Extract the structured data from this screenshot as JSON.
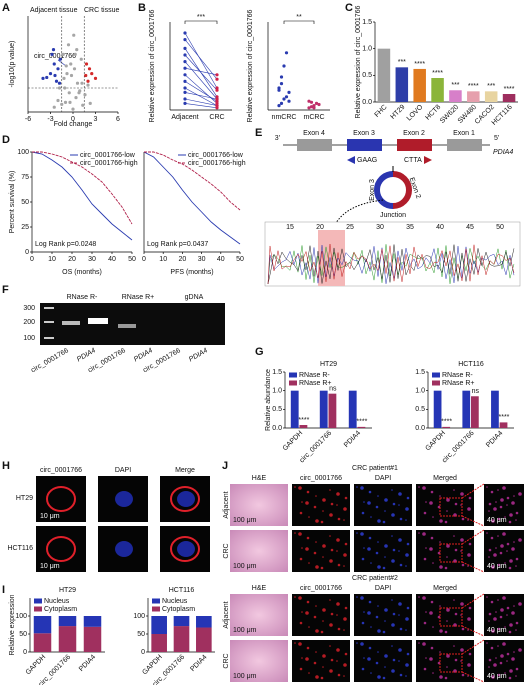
{
  "chart_data": [
    {
      "type": "scatter",
      "x_label": "Fold change",
      "y_label": "-log10(p value)",
      "annotations": [
        "Adjacent tissue",
        "CRC tissue",
        "circ_0001766"
      ],
      "xlim": [
        -6,
        6
      ],
      "ylim": [
        0,
        10
      ],
      "xticks": [
        -6,
        -3,
        0,
        3,
        6
      ],
      "vlines": [
        -1.5,
        1.5
      ],
      "hlines": [
        2.5
      ],
      "series": [
        {
          "color": "#a6a6a6",
          "x": [
            -2.5,
            -2,
            -1.8,
            -1.5,
            -1.2,
            -1,
            -0.8,
            -0.5,
            -0.3,
            0,
            0.2,
            0.4,
            0.6,
            0.9,
            1.1,
            1.3,
            1.6,
            2,
            2.3,
            -1.3,
            -0.9,
            -0.6,
            -0.2,
            0.1,
            0.5,
            0.8,
            1.2,
            -0.4,
            0.3,
            -1.1
          ],
          "values": [
            0.5,
            1.2,
            2.5,
            0.8,
            3.5,
            1,
            4,
            2,
            5,
            0.3,
            4.5,
            1.5,
            3,
            2.2,
            5.5,
            0.7,
            1.8,
            2.8,
            0.9,
            6,
            4.8,
            7,
            3.8,
            8,
            6.5,
            2,
            3,
            1,
            6,
            2.5
          ]
        },
        {
          "color": "#2a3bb0",
          "x": [
            -3,
            -2.5,
            -2.2,
            -3.5,
            -2.8,
            -2,
            -1.8,
            -4,
            -2.4,
            -1.7,
            -2.6
          ],
          "values": [
            4,
            5,
            3.2,
            3.6,
            6,
            4.5,
            3,
            3.5,
            3.8,
            5.5,
            6.5
          ]
        },
        {
          "color": "#d42a2a",
          "x": [
            2,
            2.5,
            1.8,
            3,
            2.2,
            1.7
          ],
          "values": [
            3.2,
            4,
            5,
            3.5,
            4.5,
            3.8
          ]
        }
      ]
    },
    {
      "type": "paired",
      "categories": [
        "Adjacent",
        "CRC"
      ],
      "y_label": "Relative expression of circ_0001766",
      "significance": "***",
      "colors": [
        "#2a3bb0",
        "#d0204a"
      ],
      "ylim": [
        0,
        4
      ],
      "pairs": [
        [
          3.5,
          1.0
        ],
        [
          3.2,
          1.4
        ],
        [
          2.8,
          0.6
        ],
        [
          2.5,
          0.9
        ],
        [
          2.2,
          0.5
        ],
        [
          1.9,
          1.6
        ],
        [
          1.6,
          0.3
        ],
        [
          1.3,
          0.4
        ],
        [
          1.0,
          0.2
        ],
        [
          0.8,
          0.5
        ],
        [
          0.5,
          0.2
        ],
        [
          0.3,
          0.1
        ]
      ]
    },
    {
      "type": "strip",
      "categories": [
        "nmCRC",
        "mCRC"
      ],
      "y_label": "Relative expression of circ_0001766",
      "significance": "**",
      "colors": [
        "#2a3bb0",
        "#c0306a"
      ],
      "ylim": [
        0,
        4
      ],
      "groups": [
        [
          0.2,
          0.3,
          0.5,
          0.6,
          0.8,
          1.0,
          1.5,
          2.0,
          2.6,
          0.4,
          0.9,
          1.2
        ],
        [
          0.1,
          0.15,
          0.2,
          0.3,
          0.25,
          0.4,
          0.35,
          0.1
        ]
      ]
    },
    {
      "type": "bar",
      "categories": [
        "FHC",
        "HT29",
        "LOVO",
        "HCT8",
        "SW620",
        "SW480",
        "CACO2",
        "HCT116"
      ],
      "values": [
        1.0,
        0.65,
        0.62,
        0.45,
        0.22,
        0.2,
        0.2,
        0.15
      ],
      "colors": [
        "#a0a0a0",
        "#2e3ea8",
        "#e07a1f",
        "#8bb53a",
        "#d77fc9",
        "#e6a0ad",
        "#e8d4a0",
        "#9e2e5e"
      ],
      "significance": [
        null,
        "***",
        "****",
        "****",
        "***",
        "****",
        "***",
        "****"
      ],
      "y_label": "Relative expression of circ_0001766",
      "ylim": [
        0,
        1.5
      ],
      "yticks": [
        {
          "value": 0,
          "label": "0.0"
        },
        {
          "value": 0.5,
          "label": "0.5"
        },
        {
          "value": 1,
          "label": "1.0"
        },
        {
          "value": 1.5,
          "label": "1.5"
        }
      ]
    },
    {
      "type": "line",
      "x": [
        0,
        5,
        10,
        15,
        20,
        25,
        30,
        35,
        40,
        45,
        50
      ],
      "xlim": [
        0,
        50
      ],
      "xticks": [
        0,
        10,
        20,
        30,
        40,
        50
      ],
      "ylim": [
        0,
        100
      ],
      "yticks": [
        0,
        25,
        50,
        75,
        100
      ],
      "y_label": "Percent survival (%)",
      "x_label": "OS (months)",
      "annotation": "Log Rank p=0.0248",
      "legend": "upper right",
      "series": [
        {
          "name": "circ_0001766-low",
          "color": "#2a3bb0",
          "values": [
            100,
            98,
            92,
            85,
            75,
            62,
            48,
            38,
            28,
            20,
            12
          ]
        },
        {
          "name": "circ_0001766-high",
          "color": "#b0204a",
          "values": [
            100,
            100,
            98,
            95,
            90,
            85,
            78,
            70,
            58,
            45,
            28
          ]
        }
      ]
    },
    {
      "type": "line",
      "x": [
        0,
        5,
        10,
        15,
        20,
        25,
        30,
        35,
        40,
        45,
        50
      ],
      "xlim": [
        0,
        50
      ],
      "xticks": [
        0,
        10,
        20,
        30,
        40,
        50
      ],
      "ylim": [
        0,
        100
      ],
      "x_label": "PFS (months)",
      "annotation": "Log Rank p=0.0437",
      "legend": "upper right",
      "series": [
        {
          "name": "circ_0001766-low",
          "color": "#2a3bb0",
          "values": [
            100,
            95,
            85,
            75,
            62,
            50,
            40,
            30,
            22,
            15,
            8
          ]
        },
        {
          "name": "circ_0001766-high",
          "color": "#b0204a",
          "values": [
            100,
            100,
            97,
            92,
            88,
            82,
            75,
            68,
            60,
            50,
            42
          ]
        }
      ]
    },
    {
      "type": "grouped_bar",
      "title": "HT29",
      "categories": [
        "GAPDH",
        "circ_0001766",
        "PDIA4"
      ],
      "series": [
        {
          "name": "RNase R-",
          "color": "#2535b5",
          "values": [
            1,
            1,
            1
          ]
        },
        {
          "name": "RNase R+",
          "color": "#a0305f",
          "values": [
            0.08,
            0.92,
            0.03
          ]
        }
      ],
      "significance": [
        "****",
        "ns",
        "****"
      ],
      "y_label": "Relative abundance",
      "ylim": [
        0,
        1.5
      ],
      "legend": "upper left",
      "yticks": [
        {
          "value": 0,
          "label": "0.0"
        },
        {
          "value": 0.5,
          "label": "0.5"
        },
        {
          "value": 1,
          "label": "1.0"
        },
        {
          "value": 1.5,
          "label": "1.5"
        }
      ]
    },
    {
      "type": "grouped_bar",
      "title": "HCT116",
      "categories": [
        "GAPDH",
        "circ_0001766",
        "PDIA4"
      ],
      "series": [
        {
          "name": "RNase R-",
          "color": "#2535b5",
          "values": [
            1,
            1,
            1
          ]
        },
        {
          "name": "RNase R+",
          "color": "#a0305f",
          "values": [
            0.03,
            0.85,
            0.15
          ]
        }
      ],
      "significance": [
        "****",
        "ns",
        "****"
      ],
      "y_label": "Relative abundance",
      "ylim": [
        0,
        1.5
      ],
      "legend": "upper left",
      "yticks": [
        {
          "value": 0,
          "label": "0.0"
        },
        {
          "value": 0.5,
          "label": "0.5"
        },
        {
          "value": 1,
          "label": "1.0"
        },
        {
          "value": 1.5,
          "label": "1.5"
        }
      ]
    },
    {
      "type": "stacked_bar",
      "title": "HT29",
      "categories": [
        "GAPDH",
        "circ_0001766",
        "PDIA4"
      ],
      "y_label": "Relative expression",
      "ylim": [
        0,
        150
      ],
      "yticks": [
        0,
        50,
        100
      ],
      "legend": "upper left",
      "series": [
        {
          "name": "Nucleus",
          "color": "#2535b5",
          "values": [
            48,
            28,
            30
          ]
        },
        {
          "name": "Cytoplasm",
          "color": "#a0305f",
          "values": [
            52,
            72,
            70
          ]
        }
      ]
    },
    {
      "type": "stacked_bar",
      "title": "HCT116",
      "categories": [
        "GAPDH",
        "circ_0001766",
        "PDIA4"
      ],
      "ylim": [
        0,
        150
      ],
      "yticks": [
        0,
        50,
        100
      ],
      "legend": "upper left",
      "series": [
        {
          "name": "Nucleus",
          "color": "#2535b5",
          "values": [
            50,
            28,
            32
          ]
        },
        {
          "name": "Cytoplasm",
          "color": "#a0305f",
          "values": [
            50,
            72,
            68
          ]
        }
      ]
    }
  ],
  "panels": {
    "letters": [
      "A",
      "B",
      "C",
      "D",
      "E",
      "F",
      "G",
      "H",
      "I",
      "J"
    ],
    "E": {
      "three_prime": "3'",
      "five_prime": "5'",
      "gene": "PDIA4",
      "exons": [
        "Exon 4",
        "Exon 3",
        "Exon 2",
        "Exon 1"
      ],
      "left_seq": "GAAG",
      "right_seq": "CTTA",
      "circle_exons": [
        "Exon 3",
        "Exon 2"
      ],
      "junction": "Junction",
      "positions": [
        "15",
        "20",
        "25",
        "30",
        "35",
        "40",
        "45",
        "50"
      ]
    },
    "F": {
      "markers": [
        "300",
        "200",
        "100"
      ],
      "groups": [
        "RNase R-",
        "RNase R+",
        "gDNA"
      ],
      "lanes": [
        "circ_0001766",
        "PDIA4",
        "circ_0001766",
        "PDIA4",
        "circ_0001766",
        "PDIA4"
      ]
    },
    "H": {
      "columns": [
        "circ_0001766",
        "DAPI",
        "Merge"
      ],
      "rows": [
        "HT29",
        "HCT116"
      ],
      "scale": "10 μm"
    },
    "J": {
      "patients": [
        "CRC patient#1",
        "CRC patient#2"
      ],
      "columns": [
        "H&E",
        "circ_0001766",
        "DAPI",
        "Merged"
      ],
      "rows": [
        "Adjacent",
        "CRC"
      ],
      "scale": "100 μm",
      "zoom_scale": "40 μm"
    }
  }
}
